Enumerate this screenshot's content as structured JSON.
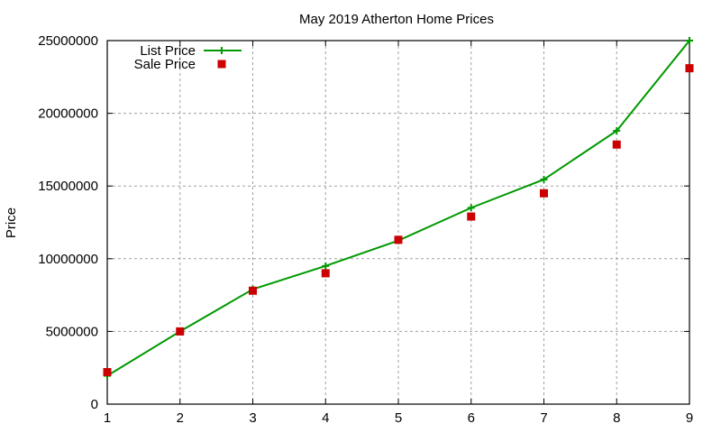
{
  "chart_data": {
    "type": "line",
    "title": "May 2019 Atherton Home Prices",
    "xlabel": "",
    "ylabel": "Price",
    "x": [
      1,
      2,
      3,
      4,
      5,
      6,
      7,
      8,
      9
    ],
    "xlim": [
      1,
      9
    ],
    "ylim": [
      0,
      25000000
    ],
    "xticks": [
      "1",
      "2",
      "3",
      "4",
      "5",
      "6",
      "7",
      "8",
      "9"
    ],
    "yticks": [
      "0",
      "5000000",
      "10000000",
      "15000000",
      "20000000",
      "25000000"
    ],
    "grid": true,
    "legend_position": "top-left",
    "series": [
      {
        "name": "List Price",
        "style": "linespoints",
        "marker": "plus",
        "color": "#009900",
        "values": [
          1950000,
          5000000,
          7900000,
          9500000,
          11250000,
          13500000,
          15450000,
          18800000,
          25000000
        ]
      },
      {
        "name": "Sale Price",
        "style": "points",
        "marker": "square",
        "color": "#cc0000",
        "values": [
          2200000,
          5000000,
          7800000,
          9000000,
          11300000,
          12900000,
          14500000,
          17850000,
          23100000
        ]
      }
    ]
  },
  "colors": {
    "list": "#009900",
    "sale": "#cc0000",
    "grid": "#a0a0a0",
    "axis": "#000000"
  }
}
